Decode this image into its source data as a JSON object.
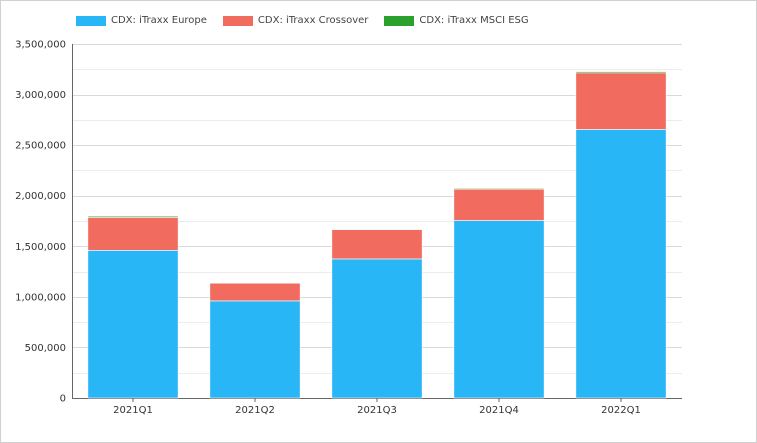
{
  "chart_data": {
    "type": "bar",
    "stacked": true,
    "categories": [
      "2021Q1",
      "2021Q2",
      "2021Q3",
      "2021Q4",
      "2022Q1"
    ],
    "series": [
      {
        "name": "CDX: iTraxx Europe",
        "color": "#29b6f6",
        "values": [
          1460000,
          960000,
          1375000,
          1755000,
          2655000
        ]
      },
      {
        "name": "CDX: iTraxx Crossover",
        "color": "#f26b5f",
        "values": [
          325000,
          175000,
          290000,
          310000,
          560000
        ]
      },
      {
        "name": "CDX: iTraxx MSCI ESG",
        "color": "#2ca02c",
        "values": [
          12000,
          4000,
          5000,
          8000,
          12000
        ]
      }
    ],
    "ylim": [
      0,
      3500000
    ],
    "yticks": [
      0,
      500000,
      1000000,
      1500000,
      2000000,
      2500000,
      3000000,
      3500000
    ],
    "ytick_labels": [
      "0",
      "500,000",
      "1,000,000",
      "1,500,000",
      "2,000,000",
      "2,500,000",
      "3,000,000",
      "3,500,000"
    ],
    "grid": true,
    "legend_position": "top-left"
  }
}
